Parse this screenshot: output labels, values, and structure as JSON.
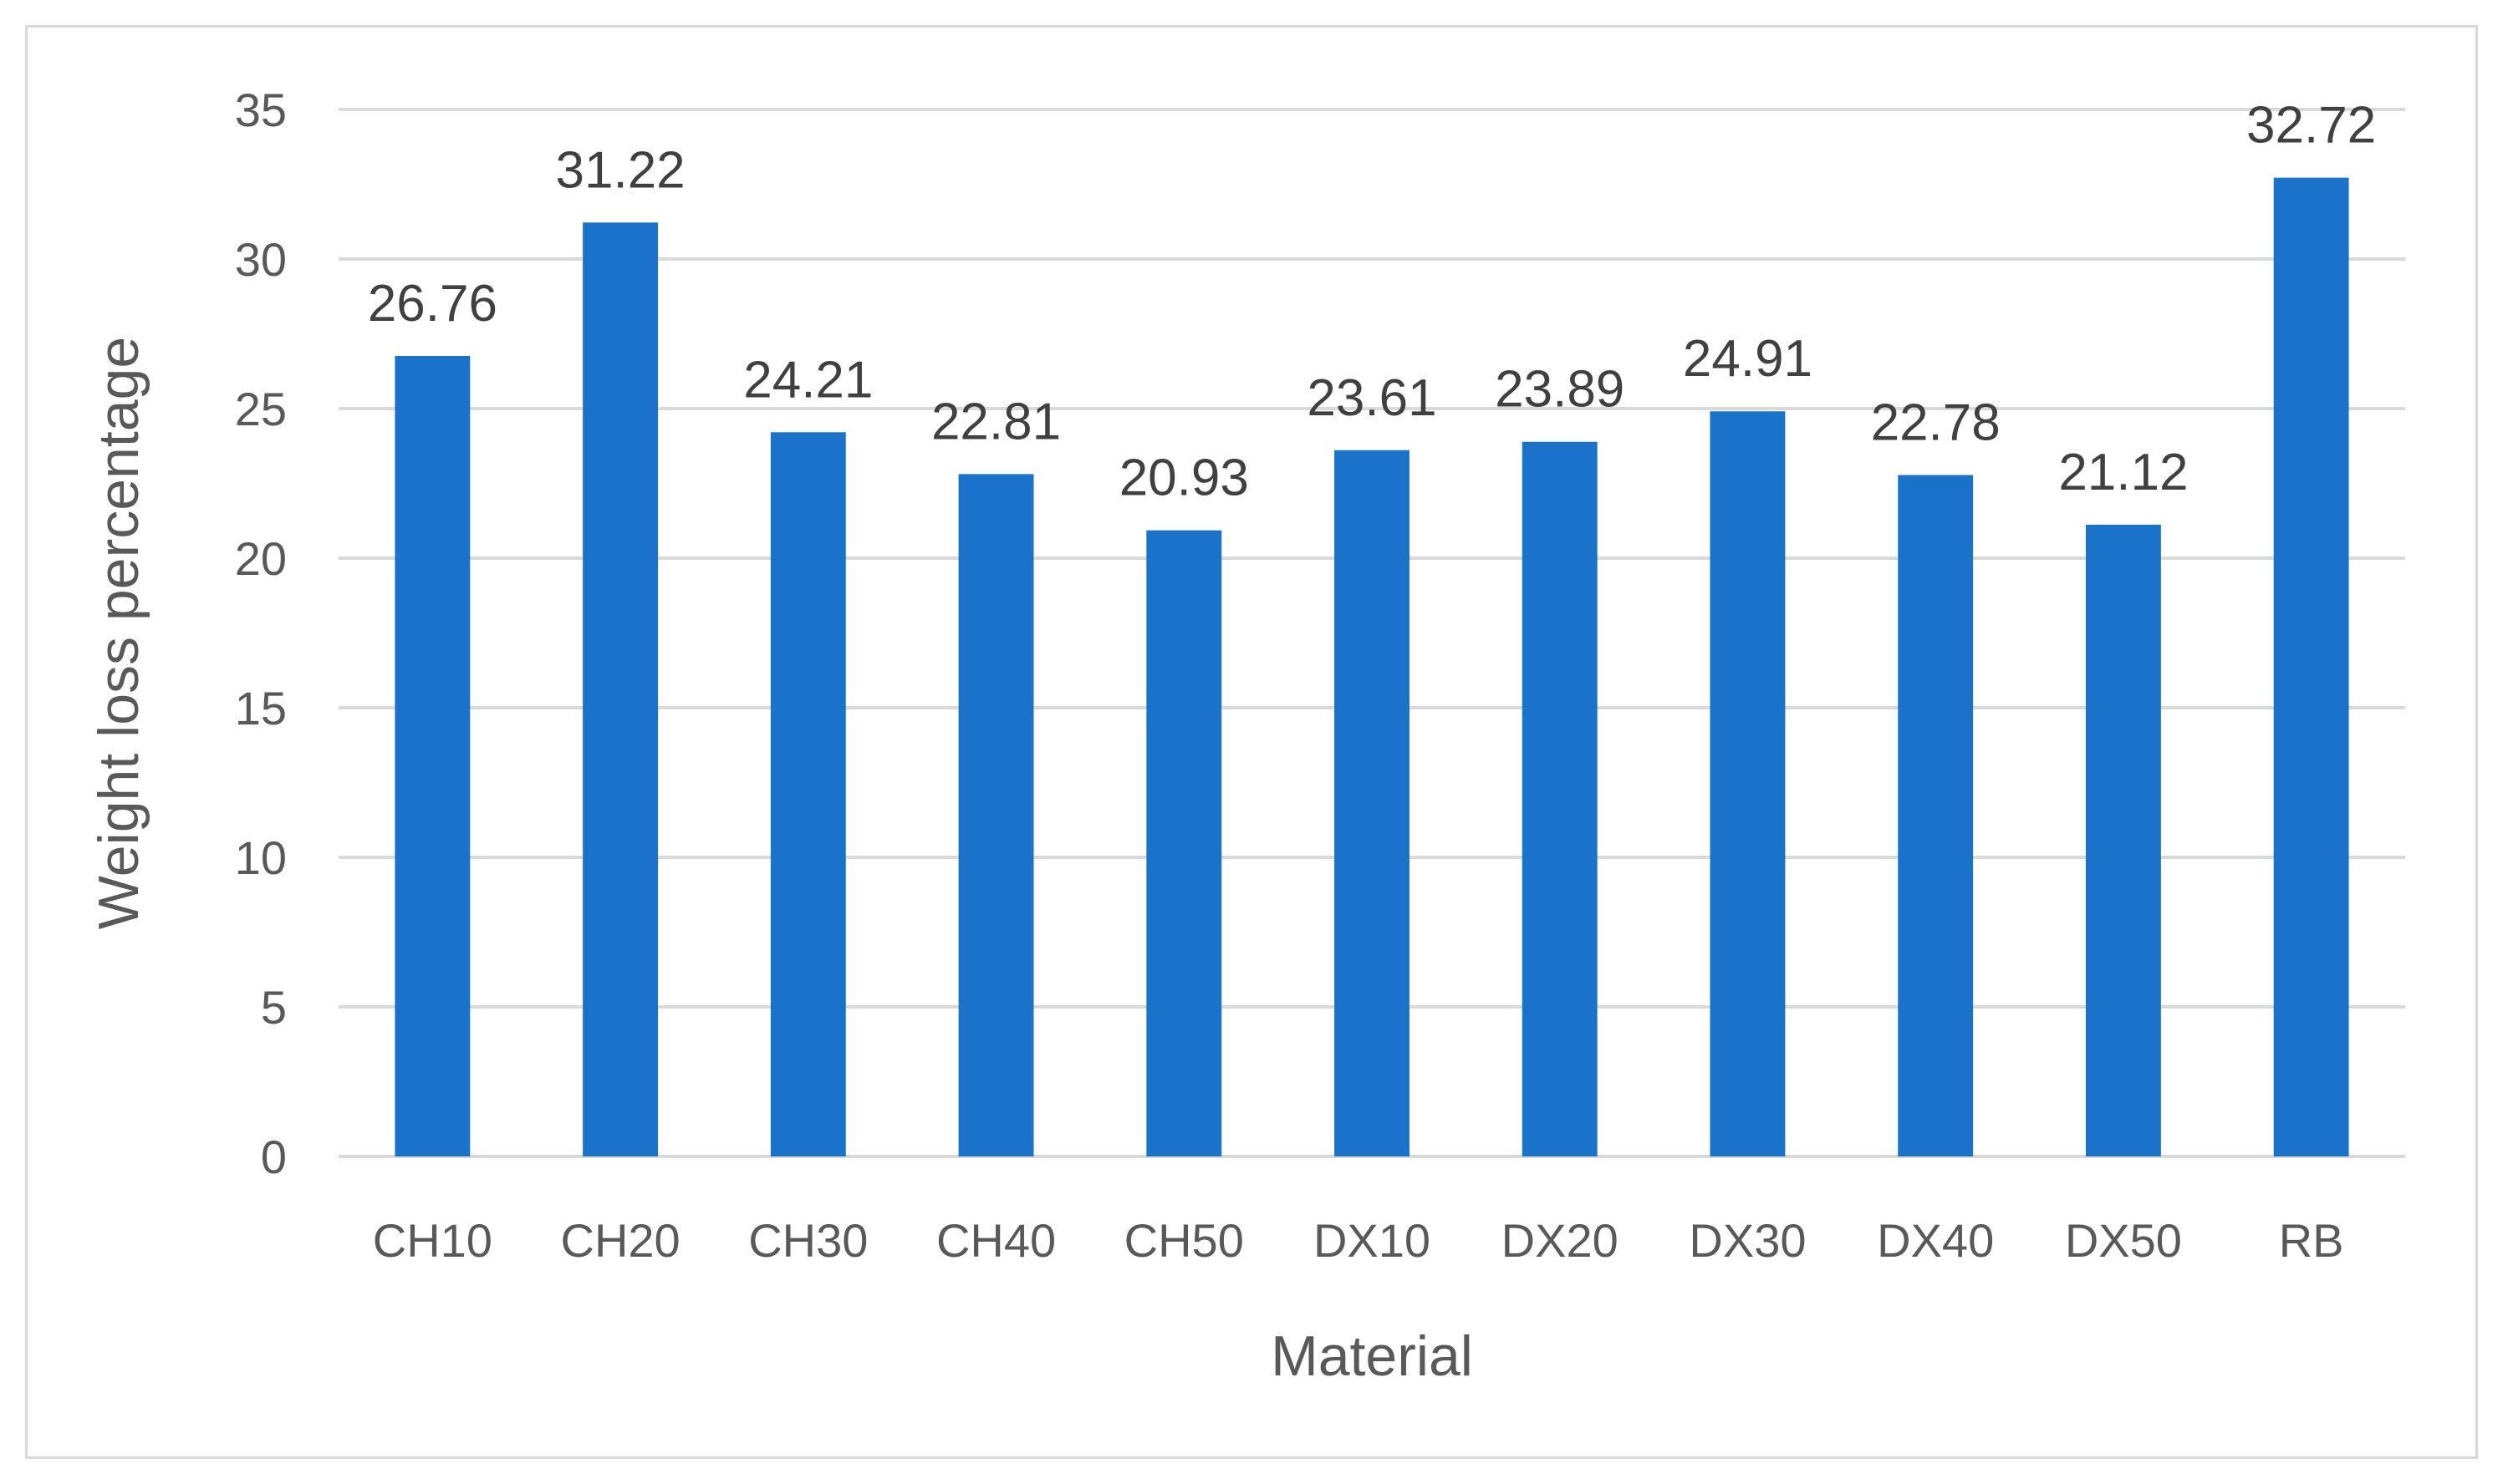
{
  "chart_data": {
    "type": "bar",
    "title": "",
    "xlabel": "Material",
    "ylabel": "Weight loss percentage",
    "categories": [
      "CH10",
      "CH20",
      "CH30",
      "CH40",
      "CH50",
      "DX10",
      "DX20",
      "DX30",
      "DX40",
      "DX50",
      "RB"
    ],
    "values": [
      26.76,
      31.22,
      24.21,
      22.81,
      20.93,
      23.61,
      23.89,
      24.91,
      22.78,
      21.12,
      32.72
    ],
    "value_labels": [
      "26.76",
      "31.22",
      "24.21",
      "22.81",
      "20.93",
      "23.61",
      "23.89",
      "24.91",
      "22.78",
      "21.12",
      "32.72"
    ],
    "ylim": [
      0,
      35
    ],
    "yticks": [
      "0",
      "5",
      "10",
      "15",
      "20",
      "25",
      "30",
      "35"
    ],
    "grid": true,
    "legend": "none",
    "bar_color": "#1a73c8",
    "grid_color": "#d9d9d9"
  }
}
